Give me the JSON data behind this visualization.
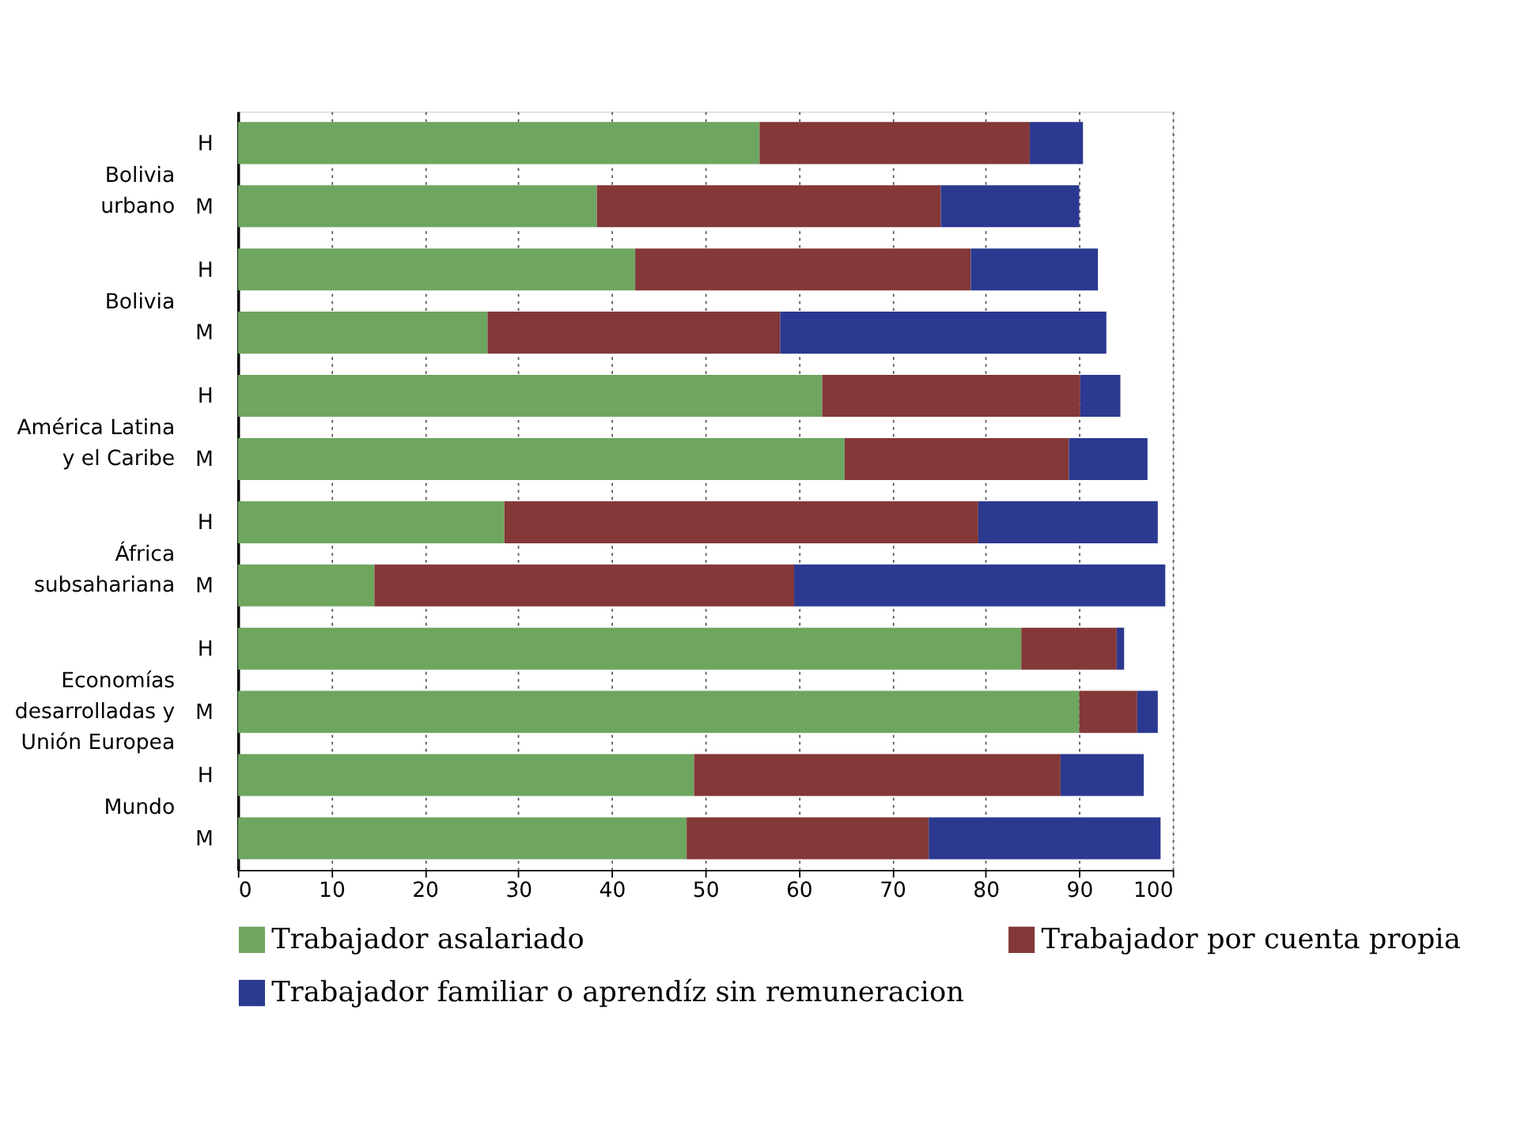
{
  "chart_data": {
    "type": "bar",
    "orientation": "horizontal",
    "stacked": true,
    "categories": [
      "H",
      "M",
      "H",
      "M",
      "H",
      "M",
      "H",
      "M",
      "H",
      "M",
      "H",
      "M"
    ],
    "series": [
      {
        "name": "Trabajador asalariado",
        "color": "#6ea660",
        "values": [
          55.8,
          38.4,
          42.5,
          26.7,
          62.5,
          64.9,
          28.5,
          14.6,
          83.8,
          90.0,
          48.8,
          48.0
        ]
      },
      {
        "name": "Trabajador por cuenta propia",
        "color": "#843838",
        "values": [
          28.9,
          36.8,
          35.9,
          31.3,
          27.6,
          24.0,
          50.7,
          44.9,
          10.2,
          6.2,
          39.2,
          25.9
        ]
      },
      {
        "name": "Trabajador familiar o aprendíz sin remuneracion",
        "color": "#2b3990",
        "values": [
          5.7,
          14.8,
          13.6,
          34.9,
          4.3,
          8.4,
          19.2,
          39.7,
          0.8,
          2.2,
          8.9,
          24.8
        ]
      }
    ],
    "annotations": [
      "Bolivia\nurbano",
      "Bolivia",
      "América Latina\ny el Caribe",
      "África\nsubsahariana",
      "Economías\ndesarrolladas y\nUnión Europea",
      "Mundo"
    ],
    "xlim": [
      0,
      100
    ],
    "xticks": [
      0,
      10,
      20,
      30,
      40,
      50,
      60,
      70,
      80,
      90,
      100
    ],
    "grid": "x",
    "legend": "bottom"
  }
}
